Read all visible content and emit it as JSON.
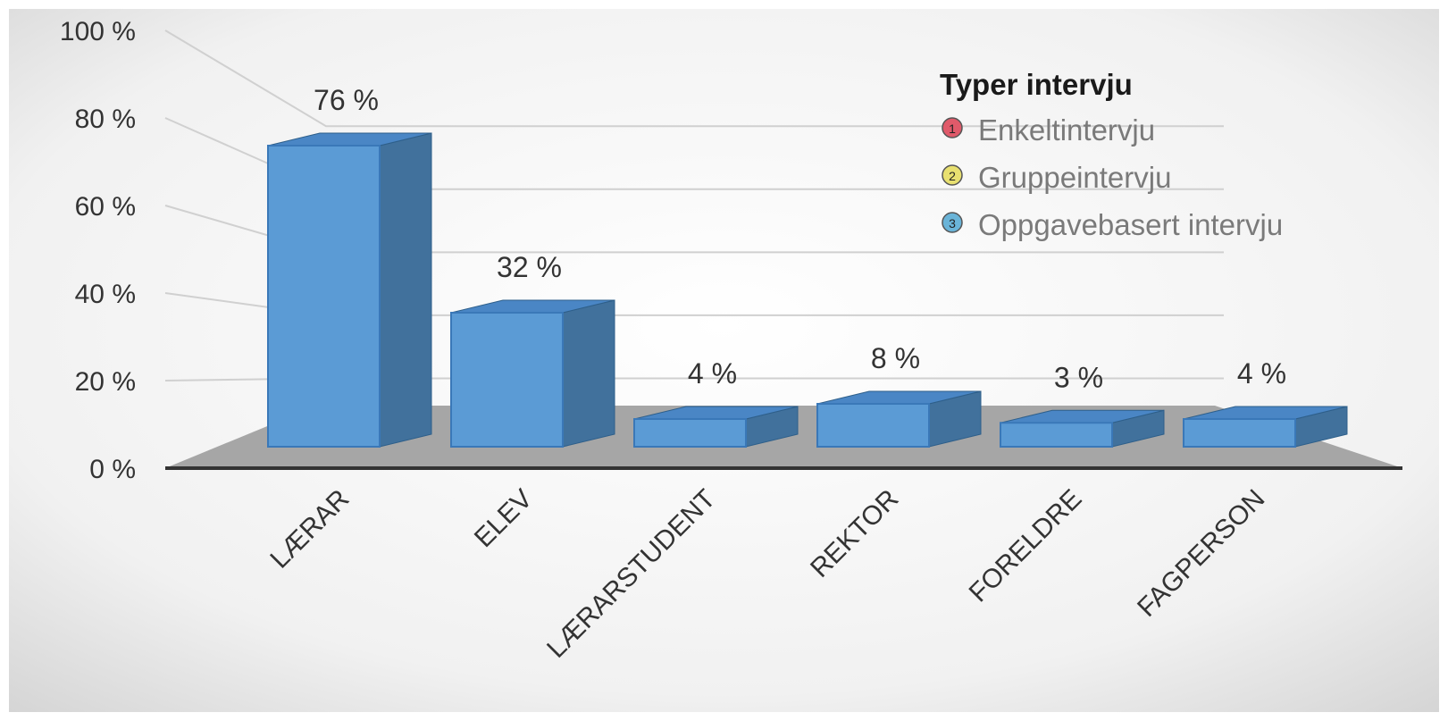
{
  "chart_data": {
    "type": "bar",
    "title": "",
    "xlabel": "",
    "ylabel": "",
    "categories": [
      "LÆRAR",
      "ELEV",
      "LÆRARSTUDENT",
      "REKTOR",
      "FORELDRE",
      "FAGPERSON"
    ],
    "values": [
      76,
      32,
      4,
      8,
      3,
      4
    ],
    "data_labels": [
      "76 %",
      "32 %",
      "4 %",
      "8 %",
      "3 %",
      "4 %"
    ],
    "yticks": [
      "0 %",
      "20 %",
      "40 %",
      "60 %",
      "80 %",
      "100 %"
    ],
    "ylim": [
      0,
      100
    ],
    "grid": true,
    "legend": {
      "title": "Typer intervju",
      "placement": "top-right",
      "items": [
        {
          "badge": "1",
          "label": "Enkeltintervju",
          "color": "#e05a6a"
        },
        {
          "badge": "2",
          "label": "Gruppeintervju",
          "color": "#e8e070"
        },
        {
          "badge": "3",
          "label": "Oppgavebasert intervju",
          "color": "#6ab4d8"
        }
      ]
    },
    "colors": {
      "bar_front": "#5b9bd5",
      "bar_side": "#41719c",
      "bar_top": "#4a86c5",
      "floor": "#a6a6a6",
      "background_center": "#ffffff",
      "background_edge": "#d9d9d9"
    }
  }
}
